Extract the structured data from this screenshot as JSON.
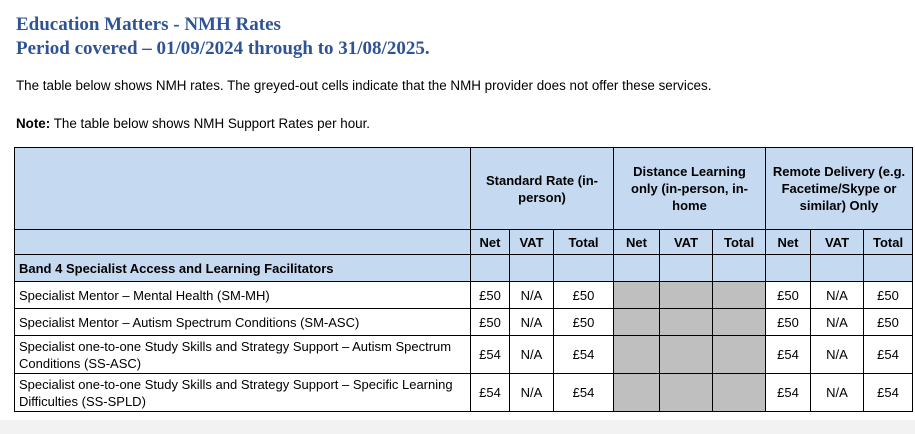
{
  "document": {
    "title": "Education Matters - NMH Rates",
    "subtitle": "Period covered – 01/09/2024 through to 31/08/2025.",
    "intro": "The table below shows NMH rates. The greyed-out cells indicate that the NMH provider does not offer these services.",
    "note_label": "Note:",
    "note_text": " The table below shows NMH Support Rates per hour."
  },
  "colors": {
    "heading": "#2f5496",
    "header_fill": "#c5d9f1",
    "unavailable_fill": "#bfbfbf"
  },
  "table": {
    "groups": [
      "Standard Rate (in-person)",
      "Distance Learning only (in-person, in-home",
      "Remote Delivery (e.g. Facetime/Skype or similar) Only"
    ],
    "subheaders": [
      "Net",
      "VAT",
      "Total"
    ],
    "band": "Band 4 Specialist Access and Learning Facilitators",
    "rows": [
      {
        "name": "Specialist Mentor – Mental Health (SM-MH)",
        "standard": [
          "£50",
          "N/A",
          "£50"
        ],
        "distance_available": false,
        "remote": [
          "£50",
          "N/A",
          "£50"
        ]
      },
      {
        "name": "Specialist Mentor – Autism Spectrum Conditions (SM-ASC)",
        "standard": [
          "£50",
          "N/A",
          "£50"
        ],
        "distance_available": false,
        "remote": [
          "£50",
          "N/A",
          "£50"
        ]
      },
      {
        "name": "Specialist one-to-one Study Skills and Strategy Support – Autism Spectrum Conditions (SS-ASC)",
        "standard": [
          "£54",
          "N/A",
          "£54"
        ],
        "distance_available": false,
        "remote": [
          "£54",
          "N/A",
          "£54"
        ]
      },
      {
        "name": "Specialist one-to-one Study Skills and Strategy Support – Specific Learning Difficulties (SS-SPLD)",
        "standard": [
          "£54",
          "N/A",
          "£54"
        ],
        "distance_available": false,
        "remote": [
          "£54",
          "N/A",
          "£54"
        ]
      }
    ]
  }
}
